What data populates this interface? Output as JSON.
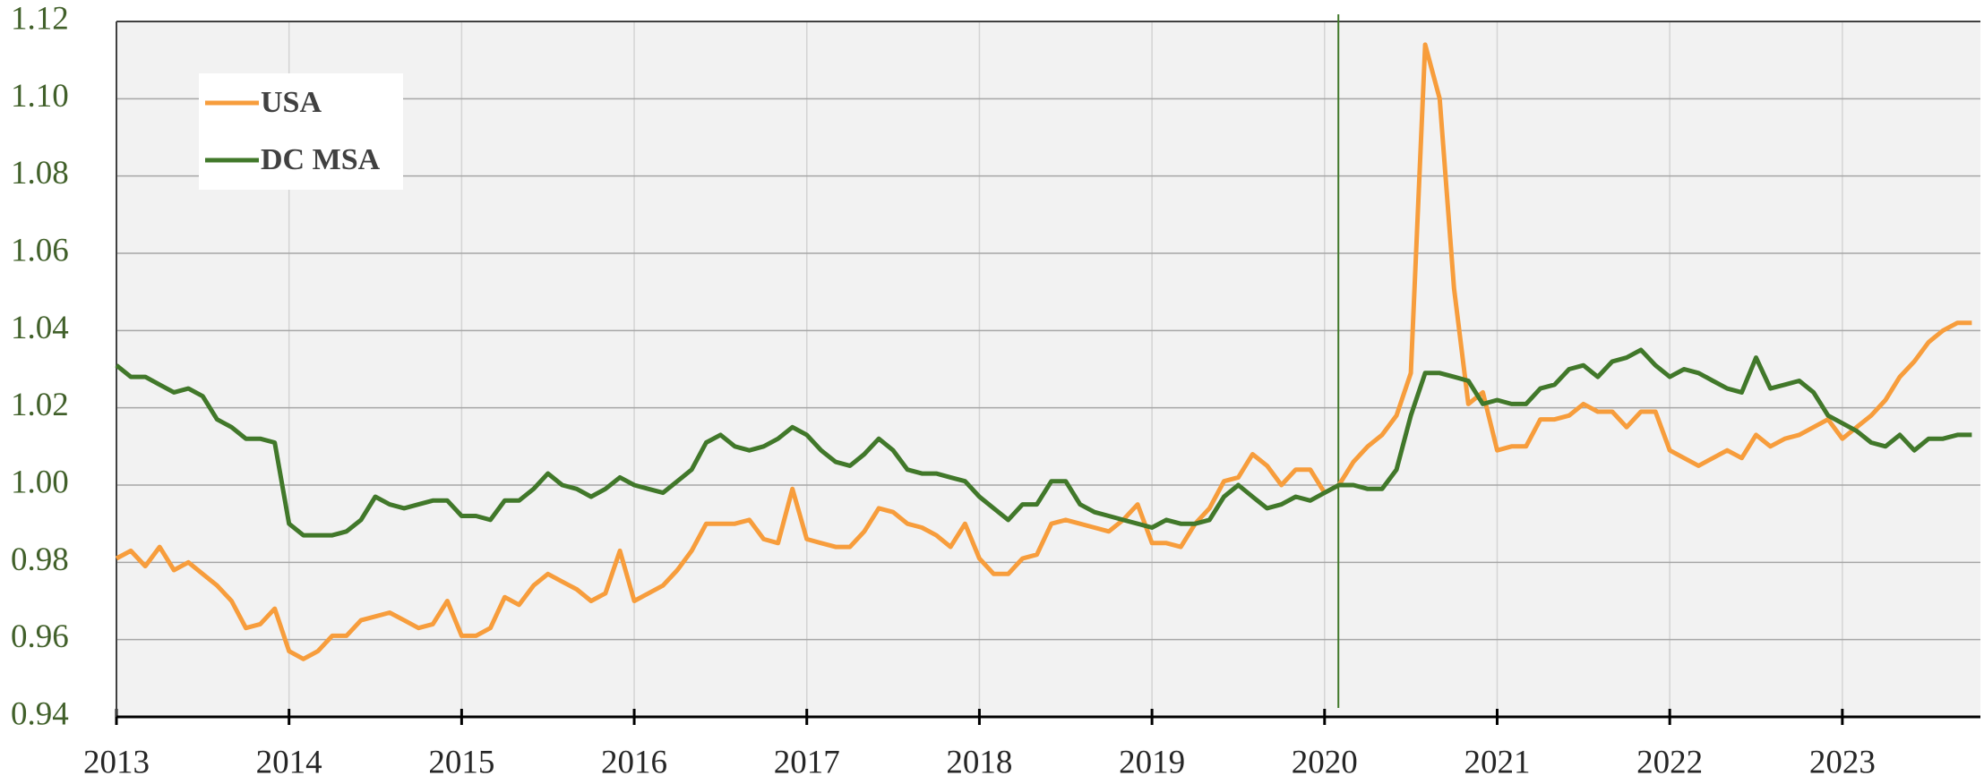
{
  "chart_data": {
    "type": "line",
    "x": [
      2013,
      2013.083,
      2013.167,
      2013.25,
      2013.333,
      2013.417,
      2013.5,
      2013.583,
      2013.667,
      2013.75,
      2013.833,
      2013.917,
      2014,
      2014.083,
      2014.167,
      2014.25,
      2014.333,
      2014.417,
      2014.5,
      2014.583,
      2014.667,
      2014.75,
      2014.833,
      2014.917,
      2015,
      2015.083,
      2015.167,
      2015.25,
      2015.333,
      2015.417,
      2015.5,
      2015.583,
      2015.667,
      2015.75,
      2015.833,
      2015.917,
      2016,
      2016.083,
      2016.167,
      2016.25,
      2016.333,
      2016.417,
      2016.5,
      2016.583,
      2016.667,
      2016.75,
      2016.833,
      2016.917,
      2017,
      2017.083,
      2017.167,
      2017.25,
      2017.333,
      2017.417,
      2017.5,
      2017.583,
      2017.667,
      2017.75,
      2017.833,
      2017.917,
      2018,
      2018.083,
      2018.167,
      2018.25,
      2018.333,
      2018.417,
      2018.5,
      2018.583,
      2018.667,
      2018.75,
      2018.833,
      2018.917,
      2019,
      2019.083,
      2019.167,
      2019.25,
      2019.333,
      2019.417,
      2019.5,
      2019.583,
      2019.667,
      2019.75,
      2019.833,
      2019.917,
      2020,
      2020.083,
      2020.167,
      2020.25,
      2020.333,
      2020.417,
      2020.5,
      2020.583,
      2020.667,
      2020.75,
      2020.833,
      2020.917,
      2021,
      2021.083,
      2021.167,
      2021.25,
      2021.333,
      2021.417,
      2021.5,
      2021.583,
      2021.667,
      2021.75,
      2021.833,
      2021.917,
      2022,
      2022.083,
      2022.167,
      2022.25,
      2022.333,
      2022.417,
      2022.5,
      2022.583,
      2022.667,
      2022.75,
      2022.833,
      2022.917,
      2023,
      2023.083,
      2023.167,
      2023.25,
      2023.333,
      2023.417,
      2023.5,
      2023.583,
      2023.667,
      2023.75
    ],
    "series": [
      {
        "name": "USA",
        "color": "#f79d3c",
        "values": [
          0.981,
          0.983,
          0.979,
          0.984,
          0.978,
          0.98,
          0.977,
          0.974,
          0.97,
          0.963,
          0.964,
          0.968,
          0.957,
          0.955,
          0.957,
          0.961,
          0.961,
          0.965,
          0.966,
          0.967,
          0.965,
          0.963,
          0.964,
          0.97,
          0.961,
          0.961,
          0.963,
          0.971,
          0.969,
          0.974,
          0.977,
          0.975,
          0.973,
          0.97,
          0.972,
          0.983,
          0.97,
          0.972,
          0.974,
          0.978,
          0.983,
          0.99,
          0.99,
          0.99,
          0.991,
          0.986,
          0.985,
          0.999,
          0.986,
          0.985,
          0.984,
          0.984,
          0.988,
          0.994,
          0.993,
          0.99,
          0.989,
          0.987,
          0.984,
          0.99,
          0.981,
          0.977,
          0.977,
          0.981,
          0.982,
          0.99,
          0.991,
          0.99,
          0.989,
          0.988,
          0.991,
          0.995,
          0.985,
          0.985,
          0.984,
          0.99,
          0.994,
          1.001,
          1.002,
          1.008,
          1.005,
          1.0,
          1.004,
          1.004,
          0.998,
          1.0,
          1.006,
          1.01,
          1.013,
          1.018,
          1.029,
          1.114,
          1.1,
          1.051,
          1.021,
          1.024,
          1.009,
          1.01,
          1.01,
          1.017,
          1.017,
          1.018,
          1.021,
          1.019,
          1.019,
          1.015,
          1.019,
          1.019,
          1.009,
          1.007,
          1.005,
          1.007,
          1.009,
          1.007,
          1.013,
          1.01,
          1.012,
          1.013,
          1.015,
          1.017,
          1.012,
          1.015,
          1.018,
          1.022,
          1.028,
          1.032,
          1.037,
          1.04,
          1.042,
          1.042
        ]
      },
      {
        "name": "DC MSA",
        "color": "#41782a",
        "values": [
          1.031,
          1.028,
          1.028,
          1.026,
          1.024,
          1.025,
          1.023,
          1.017,
          1.015,
          1.012,
          1.012,
          1.011,
          0.99,
          0.987,
          0.987,
          0.987,
          0.988,
          0.991,
          0.997,
          0.995,
          0.994,
          0.995,
          0.996,
          0.996,
          0.992,
          0.992,
          0.991,
          0.996,
          0.996,
          0.999,
          1.003,
          1.0,
          0.999,
          0.997,
          0.999,
          1.002,
          1.0,
          0.999,
          0.998,
          1.001,
          1.004,
          1.011,
          1.013,
          1.01,
          1.009,
          1.01,
          1.012,
          1.015,
          1.013,
          1.009,
          1.006,
          1.005,
          1.008,
          1.012,
          1.009,
          1.004,
          1.003,
          1.003,
          1.002,
          1.001,
          0.997,
          0.994,
          0.991,
          0.995,
          0.995,
          1.001,
          1.001,
          0.995,
          0.993,
          0.992,
          0.991,
          0.99,
          0.989,
          0.991,
          0.99,
          0.99,
          0.991,
          0.997,
          1.0,
          0.997,
          0.994,
          0.995,
          0.997,
          0.996,
          0.998,
          1.0,
          1.0,
          0.999,
          0.999,
          1.004,
          1.018,
          1.029,
          1.029,
          1.028,
          1.027,
          1.021,
          1.022,
          1.021,
          1.021,
          1.025,
          1.026,
          1.03,
          1.031,
          1.028,
          1.032,
          1.033,
          1.035,
          1.031,
          1.028,
          1.03,
          1.029,
          1.027,
          1.025,
          1.024,
          1.033,
          1.025,
          1.026,
          1.027,
          1.024,
          1.018,
          1.016,
          1.014,
          1.011,
          1.01,
          1.013,
          1.009,
          1.012,
          1.012,
          1.013,
          1.013
        ]
      }
    ],
    "reference_line_x": 2020.08,
    "reference_line_color": "#41782a",
    "xlim": [
      2013,
      2023.8
    ],
    "xticks": [
      2013,
      2014,
      2015,
      2016,
      2017,
      2018,
      2019,
      2020,
      2021,
      2022,
      2023
    ],
    "ylim": [
      0.94,
      1.12
    ],
    "yticks": [
      {
        "value": 0.94,
        "label": "0.94"
      },
      {
        "value": 0.96,
        "label": "0.96"
      },
      {
        "value": 0.98,
        "label": "0.98"
      },
      {
        "value": 1.0,
        "label": "1.00"
      },
      {
        "value": 1.02,
        "label": "1.02"
      },
      {
        "value": 1.04,
        "label": "1.04"
      },
      {
        "value": 1.06,
        "label": "1.06"
      },
      {
        "value": 1.08,
        "label": "1.08"
      },
      {
        "value": 1.1,
        "label": "1.10"
      },
      {
        "value": 1.12,
        "label": "1.12"
      }
    ],
    "grid": true,
    "legend": "upper left"
  }
}
